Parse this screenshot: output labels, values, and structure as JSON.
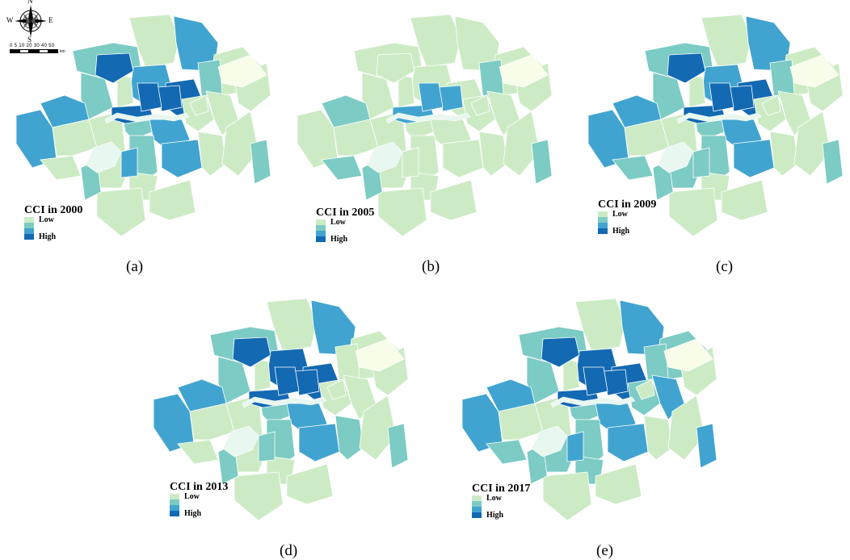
{
  "compass": {
    "n": "N",
    "s": "S",
    "e": "E",
    "w": "W"
  },
  "scale": {
    "ticks": "0 5 10   20   30   40   50",
    "unit": "km"
  },
  "legend": {
    "low": "Low",
    "high": "High",
    "colors": [
      "#ccebc5",
      "#7ccbc4",
      "#41a4d0",
      "#1369b2"
    ]
  },
  "boundary_color": "#ffffff",
  "river_color": "#e8f7ef",
  "null_color": "#f7fde8",
  "panels": [
    {
      "caption": "(a)",
      "legend_title": "CCI in 2000",
      "levels": [
        0,
        3,
        2,
        3,
        4,
        2,
        3,
        1,
        1,
        2,
        3,
        0,
        1,
        2,
        4,
        3,
        1,
        1,
        2,
        3,
        0,
        1,
        0,
        0,
        2,
        1,
        1,
        4,
        4,
        3,
        0,
        1,
        2,
        1,
        4,
        -1
      ]
    },
    {
      "caption": "(b)",
      "legend_title": "CCI in 2005",
      "levels": [
        1,
        1,
        1,
        1,
        1,
        1,
        2,
        1,
        1,
        2,
        1,
        1,
        1,
        1,
        3,
        1,
        1,
        1,
        1,
        1,
        1,
        1,
        1,
        0,
        2,
        1,
        1,
        1,
        3,
        1,
        0,
        1,
        2,
        2,
        3,
        -1
      ]
    },
    {
      "caption": "(c)",
      "legend_title": "CCI in 2009",
      "levels": [
        0,
        3,
        2,
        3,
        4,
        2,
        3,
        1,
        1,
        2,
        3,
        1,
        1,
        2,
        4,
        3,
        1,
        1,
        2,
        3,
        1,
        1,
        1,
        0,
        2,
        2,
        1,
        4,
        4,
        2,
        0,
        1,
        2,
        2,
        4,
        -1
      ]
    },
    {
      "caption": "(d)",
      "legend_title": "CCI in 2013",
      "levels": [
        0,
        3,
        2,
        4,
        4,
        2,
        3,
        1,
        1,
        1,
        3,
        0,
        1,
        2,
        4,
        3,
        1,
        1,
        2,
        3,
        1,
        2,
        1,
        0,
        2,
        1,
        1,
        4,
        4,
        2,
        0,
        1,
        2,
        1,
        4,
        -1
      ]
    },
    {
      "caption": "(e)",
      "legend_title": "CCI in 2017",
      "levels": [
        1,
        3,
        2,
        4,
        4,
        2,
        3,
        1,
        2,
        2,
        3,
        1,
        1,
        2,
        4,
        3,
        2,
        3,
        2,
        3,
        0,
        1,
        1,
        0,
        3,
        2,
        2,
        4,
        4,
        3,
        0,
        1,
        2,
        2,
        4,
        -1
      ]
    }
  ]
}
